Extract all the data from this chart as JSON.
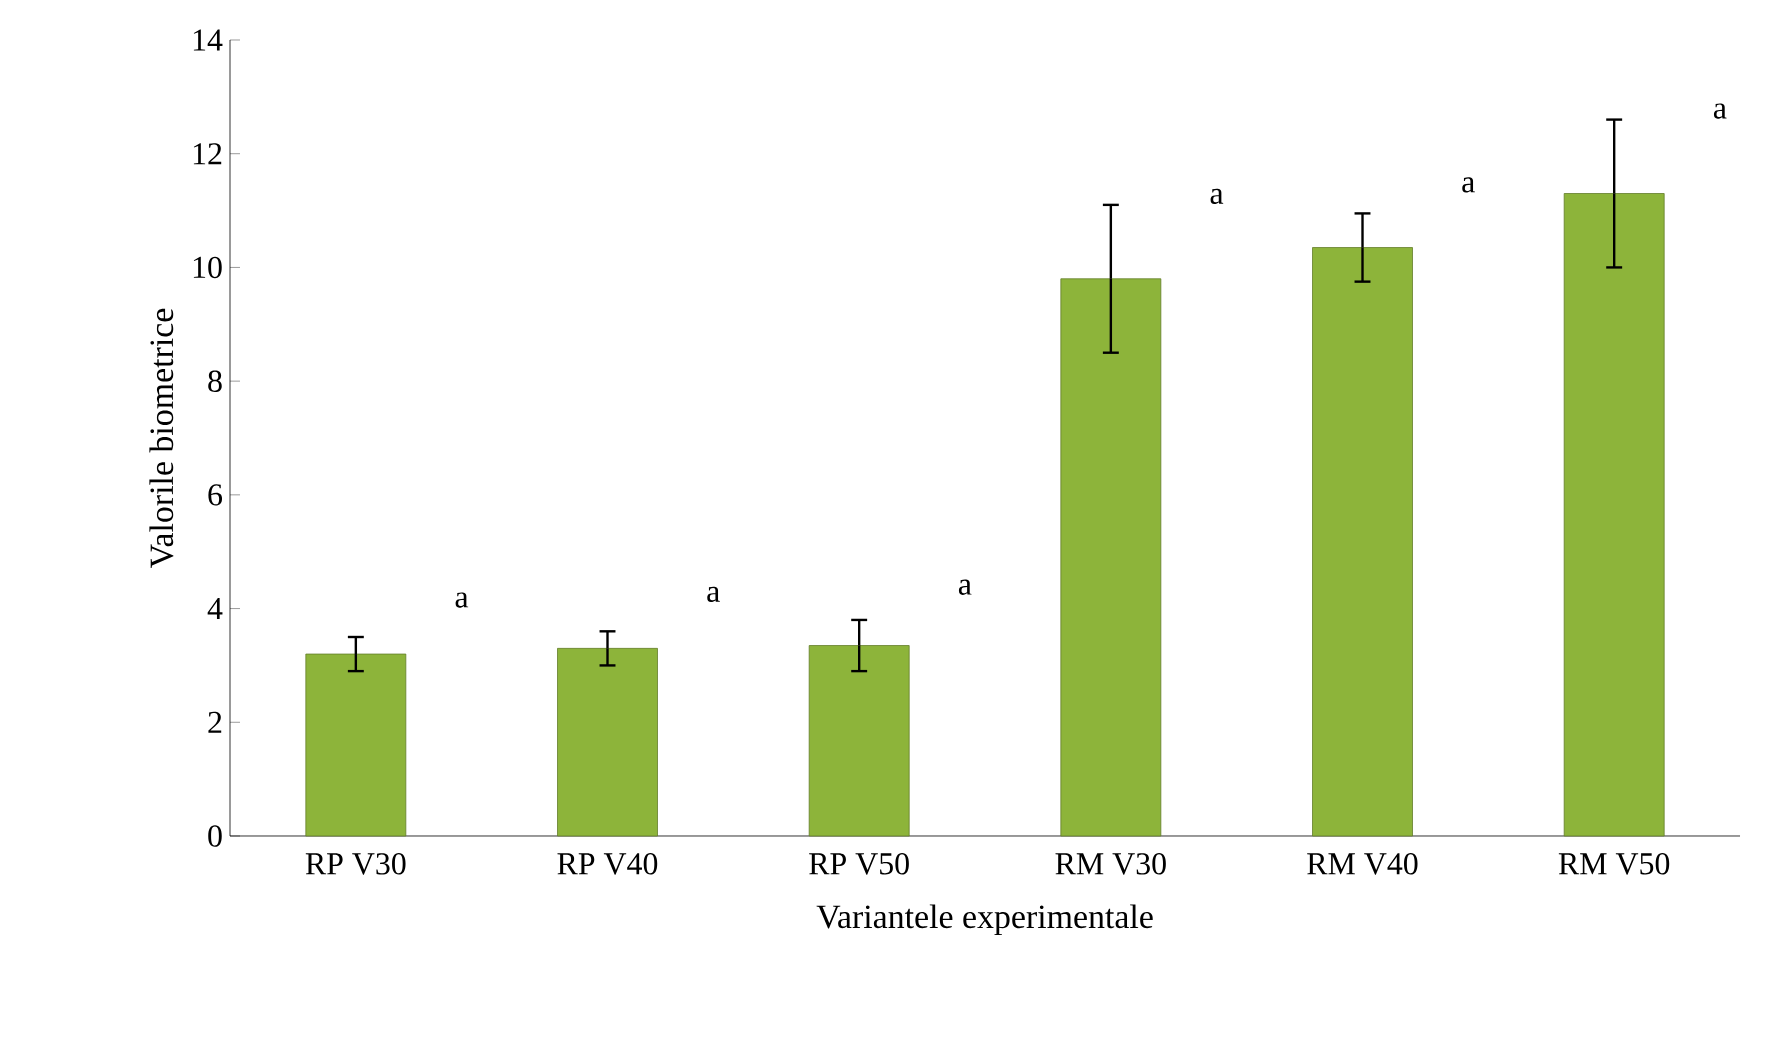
{
  "chart_data": {
    "type": "bar",
    "xlabel": "Variantele experimentale",
    "ylabel": "Valorile biometrice",
    "categories": [
      "RP V30",
      "RP V40",
      "RP V50",
      "RM V30",
      "RM V40",
      "RM V50"
    ],
    "values": [
      3.2,
      3.3,
      3.35,
      9.8,
      10.35,
      11.3
    ],
    "errors": [
      0.3,
      0.3,
      0.45,
      1.3,
      0.6,
      1.3
    ],
    "color": "#8db43a",
    "ylim": [
      0,
      14
    ],
    "yticks": [
      0,
      2,
      4,
      6,
      8,
      10,
      12,
      14
    ],
    "grid": false,
    "annotations": [
      "a",
      "a",
      "a",
      "a",
      "a",
      "a"
    ]
  }
}
